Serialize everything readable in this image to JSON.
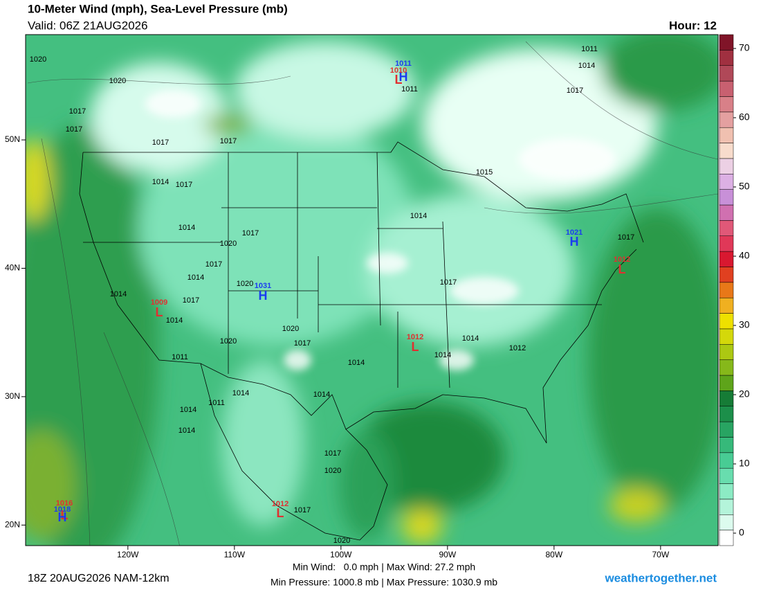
{
  "header": {
    "title": "10-Meter Wind (mph), Sea-Level Pressure (mb)",
    "valid": "Valid: 06Z 21AUG2026",
    "hour": "Hour: 12"
  },
  "map": {
    "xlim": [
      -129.6,
      -64.6
    ],
    "ylim": [
      18.4,
      58.2
    ],
    "xticks": [
      {
        "value": -120,
        "label": "120W"
      },
      {
        "value": -110,
        "label": "110W"
      },
      {
        "value": -100,
        "label": "100W"
      },
      {
        "value": -90,
        "label": "90W"
      },
      {
        "value": -80,
        "label": "80W"
      },
      {
        "value": -70,
        "label": "70W"
      }
    ],
    "yticks": [
      {
        "value": 50,
        "label": "50N"
      },
      {
        "value": 40,
        "label": "40N"
      },
      {
        "value": 30,
        "label": "30N"
      },
      {
        "value": 20,
        "label": "20N"
      }
    ],
    "pressure_labels": [
      1020,
      1020,
      1017,
      1017,
      1017,
      1017,
      1014,
      1017,
      1014,
      1017,
      1020,
      1017,
      1014,
      1020,
      1017,
      1014,
      1014,
      1020,
      1017,
      1020,
      1011,
      1014,
      1014,
      1017,
      1014,
      1014,
      1012,
      1014,
      1014,
      1011,
      1014,
      1014,
      1017,
      1020,
      1017,
      1020,
      1017,
      1017,
      1011,
      1014,
      1011,
      1015
    ],
    "highs_lows": [
      {
        "letter": "H",
        "value": 1011
      },
      {
        "letter": "L",
        "value": 1010
      },
      {
        "letter": "H",
        "value": 1021
      },
      {
        "letter": "H",
        "value": 1031
      },
      {
        "letter": "L",
        "value": 1009
      },
      {
        "letter": "L",
        "value": 1012
      },
      {
        "letter": "L",
        "value": 1012
      },
      {
        "letter": "L",
        "value": 1012
      },
      {
        "letter": "L",
        "value": 1016
      },
      {
        "letter": "H",
        "value": 1018
      }
    ]
  },
  "colorbar": {
    "ticks": [
      0,
      10,
      20,
      30,
      40,
      50,
      60,
      70
    ],
    "ylim": [
      -1.8,
      72
    ],
    "colors": [
      "#ffffff",
      "#dcfbee",
      "#b4f4da",
      "#8cebc4",
      "#68ddae",
      "#48cc94",
      "#36b97a",
      "#28a462",
      "#1c8f4a",
      "#167c36",
      "#5ea41a",
      "#86b81a",
      "#acc812",
      "#d4d80a",
      "#eee000",
      "#f0b020",
      "#e87818",
      "#e04020",
      "#d81830",
      "#e03858",
      "#e05878",
      "#d070b0",
      "#c890d8",
      "#dcb0e4",
      "#ecd0e4",
      "#f8dccc",
      "#f0c0b0",
      "#e4a0a0",
      "#d88088",
      "#c86070",
      "#b04858",
      "#a03040",
      "#801428"
    ]
  },
  "footer": {
    "run": "18Z 20AUG2026 NAM-12km",
    "wind": "Min Wind:   0.0 mph | Max Wind: 27.2 mph",
    "pressure": "Min Pressure: 1000.8 mb | Max Pressure: 1030.9 mb",
    "site": "weathertogether.net"
  }
}
